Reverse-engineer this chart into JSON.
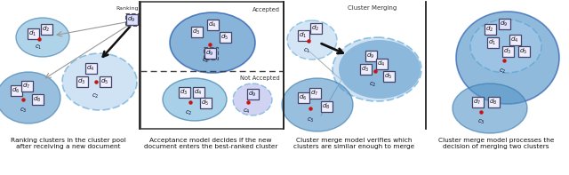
{
  "fig_width": 6.4,
  "fig_height": 1.97,
  "dpi": 100,
  "background": "#ffffff",
  "panel_captions": [
    "Ranking clusters in the cluster pool\nafter receiving a new document",
    "Acceptance model decides if the new\ndocument enters the best-ranked cluster",
    "Cluster merge model verifies which\nclusters are similar enough to merge",
    "Cluster merge model processes the\ndecision of merging two clusters"
  ],
  "light_blue_solid": "#7ab8dc",
  "medium_blue_solid": "#5595c8",
  "light_blue_dashed": "#aaccee",
  "dashed_edge": "#4499cc",
  "solid_edge": "#3377aa",
  "darker_edge": "#2255aa",
  "doc_fill": "#eeeeff",
  "doc_edge": "#444466",
  "red_dot": "#cc1111",
  "text_color": "#111111",
  "caption_fontsize": 5.3,
  "label_fontsize": 5.0
}
